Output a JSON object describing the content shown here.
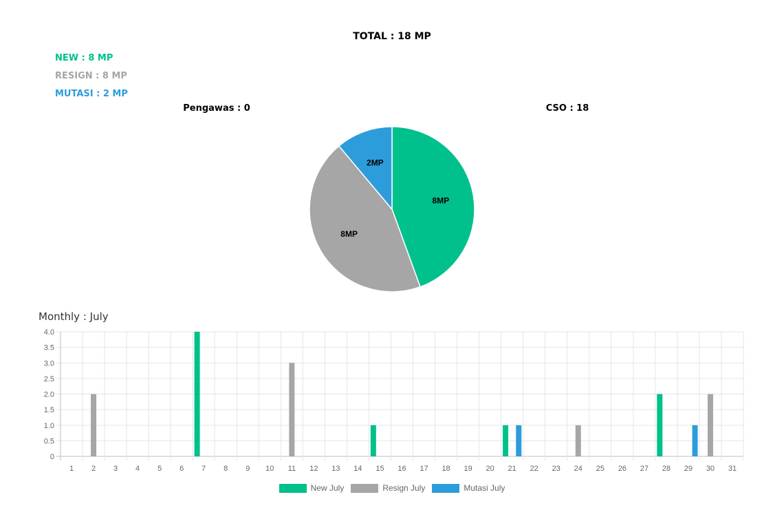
{
  "header": {
    "total": "TOTAL : 18 MP",
    "new": "NEW : 8 MP",
    "resign": "RESIGN : 8 MP",
    "mutasi": "MUTASI : 2 MP",
    "pengawas": "Pengawas : 0",
    "cso": "CSO : 18",
    "monthly": "Monthly : July"
  },
  "colors": {
    "new": "#00c08b",
    "resign": "#a6a6a6",
    "mutasi": "#2d9cdb"
  },
  "chart_data": [
    {
      "type": "pie",
      "slices": [
        {
          "label": "8MP",
          "value": 8,
          "color": "#00c08b"
        },
        {
          "label": "8MP",
          "value": 8,
          "color": "#a6a6a6"
        },
        {
          "label": "2MP",
          "value": 2,
          "color": "#2d9cdb"
        }
      ]
    },
    {
      "type": "bar",
      "categories": [
        "1",
        "2",
        "3",
        "4",
        "5",
        "6",
        "7",
        "8",
        "9",
        "10",
        "11",
        "12",
        "13",
        "14",
        "15",
        "16",
        "17",
        "18",
        "19",
        "20",
        "21",
        "22",
        "23",
        "24",
        "25",
        "26",
        "27",
        "28",
        "29",
        "30",
        "31"
      ],
      "y_ticks": [
        "0",
        "0.5",
        "1.0",
        "1.5",
        "2.0",
        "2.5",
        "3.0",
        "3.5",
        "4.0"
      ],
      "ylim": [
        0,
        4
      ],
      "grid": true,
      "legend_position": "bottom",
      "series": [
        {
          "name": "New July",
          "color": "#00c08b",
          "values": [
            0,
            0,
            0,
            0,
            0,
            0,
            4,
            0,
            0,
            0,
            0,
            0,
            0,
            0,
            1,
            0,
            0,
            0,
            0,
            0,
            1,
            0,
            0,
            0,
            0,
            0,
            0,
            2,
            0,
            0,
            0
          ]
        },
        {
          "name": "Resign July",
          "color": "#a6a6a6",
          "values": [
            0,
            2,
            0,
            0,
            0,
            0,
            0,
            0,
            0,
            0,
            3,
            0,
            0,
            0,
            0,
            0,
            0,
            0,
            0,
            0,
            0,
            0,
            0,
            1,
            0,
            0,
            0,
            0,
            0,
            2,
            0
          ]
        },
        {
          "name": "Mutasi July",
          "color": "#2d9cdb",
          "values": [
            0,
            0,
            0,
            0,
            0,
            0,
            0,
            0,
            0,
            0,
            0,
            0,
            0,
            0,
            0,
            0,
            0,
            0,
            0,
            0,
            1,
            0,
            0,
            0,
            0,
            0,
            0,
            0,
            1,
            0,
            0
          ]
        }
      ]
    }
  ]
}
